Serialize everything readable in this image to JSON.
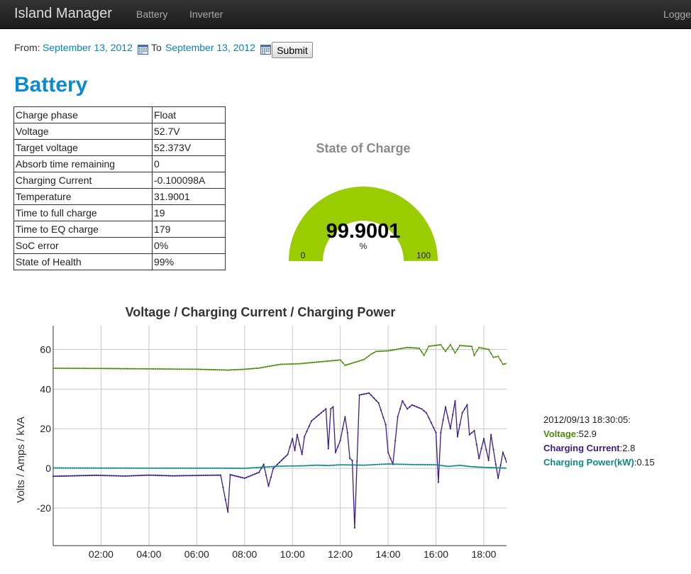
{
  "nav": {
    "brand": "Island Manager",
    "links": [
      "Battery",
      "Inverter"
    ],
    "right": "Logge"
  },
  "date_range": {
    "from_label": "From:",
    "from": "September 13, 2012",
    "to_label": "To",
    "to": "September 13, 2012",
    "submit": "Submit"
  },
  "section_title": "Battery",
  "battery_table": [
    [
      "Charge phase",
      "Float"
    ],
    [
      "Voltage",
      "52.7V"
    ],
    [
      "Target voltage",
      "52.373V"
    ],
    [
      "Absorb time remaining",
      "0"
    ],
    [
      "Charging Current",
      "-0.100098A"
    ],
    [
      "Temperature",
      "31.9001"
    ],
    [
      "Time to full charge",
      "19"
    ],
    [
      "Time to EQ charge",
      "179"
    ],
    [
      "SoC error",
      "0%"
    ],
    [
      "State of Health",
      "99%"
    ]
  ],
  "gauge": {
    "title": "State of Charge",
    "value": "99.9001",
    "unit": "%",
    "min": "0",
    "max": "100",
    "fraction": 0.999,
    "color": "#9acd00"
  },
  "colors": {
    "voltage": "#4c8c0c",
    "current": "#3f1a86",
    "power": "#0e8a86",
    "link": "#0a80c4",
    "title": "#0a8ad2"
  },
  "legend": {
    "timestamp": "2012/09/13 18:30:05:",
    "items": [
      {
        "label": "Voltage",
        "value": ":52.9"
      },
      {
        "label": "Charging Current",
        "value": ":2.8"
      },
      {
        "label": "Charging Power(kW)",
        "value": ":0.15"
      }
    ]
  },
  "chart_data": {
    "type": "line",
    "title": "Voltage / Charging Current / Charging Power",
    "ylabel": "Volts / Amps / kVA",
    "xlabel": "",
    "xlim": [
      0,
      18.95
    ],
    "ylim": [
      -39,
      72
    ],
    "x_ticks": [
      "02:00",
      "04:00",
      "06:00",
      "08:00",
      "10:00",
      "12:00",
      "14:00",
      "16:00",
      "18:00"
    ],
    "y_ticks": [
      "60",
      "40",
      "20",
      "0",
      "-20"
    ],
    "grid": true,
    "series": [
      {
        "name": "Voltage",
        "points": [
          [
            0,
            50.5
          ],
          [
            2,
            50.4
          ],
          [
            4,
            50.2
          ],
          [
            6,
            50
          ],
          [
            7.3,
            49.6
          ],
          [
            8,
            50
          ],
          [
            8.6,
            50.6
          ],
          [
            9.5,
            52.5
          ],
          [
            10.3,
            52.8
          ],
          [
            11.2,
            53.8
          ],
          [
            12,
            54.7
          ],
          [
            12.2,
            52
          ],
          [
            12.8,
            54.2
          ],
          [
            13,
            55
          ],
          [
            13.3,
            57.7
          ],
          [
            13.5,
            59
          ],
          [
            14,
            59.3
          ],
          [
            14.8,
            61
          ],
          [
            15.3,
            60.6
          ],
          [
            15.5,
            57
          ],
          [
            15.7,
            61.6
          ],
          [
            16.2,
            62.4
          ],
          [
            16.4,
            59
          ],
          [
            16.6,
            62.4
          ],
          [
            16.8,
            58.2
          ],
          [
            17,
            62
          ],
          [
            17.5,
            61.5
          ],
          [
            17.6,
            57
          ],
          [
            17.8,
            61
          ],
          [
            18.2,
            60
          ],
          [
            18.4,
            56
          ],
          [
            18.6,
            56.5
          ],
          [
            18.8,
            52.5
          ],
          [
            18.95,
            52.9
          ]
        ]
      },
      {
        "name": "Charging Current",
        "points": [
          [
            0,
            -4
          ],
          [
            1.8,
            -3.5
          ],
          [
            3,
            -3.9
          ],
          [
            4,
            -3.4
          ],
          [
            5,
            -3.8
          ],
          [
            6,
            -3.6
          ],
          [
            7,
            -3.4
          ],
          [
            7.3,
            -22
          ],
          [
            7.4,
            -3.2
          ],
          [
            8,
            -5
          ],
          [
            8.6,
            -2
          ],
          [
            8.8,
            2
          ],
          [
            9,
            -9
          ],
          [
            9.2,
            0
          ],
          [
            9.8,
            7
          ],
          [
            10,
            15
          ],
          [
            10.1,
            9
          ],
          [
            10.2,
            17
          ],
          [
            10.4,
            7
          ],
          [
            10.5,
            16
          ],
          [
            10.8,
            24
          ],
          [
            11,
            26
          ],
          [
            11.2,
            28
          ],
          [
            11.4,
            30
          ],
          [
            11.5,
            10
          ],
          [
            11.6,
            30
          ],
          [
            11.7,
            31
          ],
          [
            11.8,
            8
          ],
          [
            12,
            14
          ],
          [
            12.2,
            26
          ],
          [
            12.3,
            18
          ],
          [
            12.4,
            5
          ],
          [
            12.5,
            4
          ],
          [
            12.6,
            -30
          ],
          [
            12.8,
            37
          ],
          [
            13.2,
            38
          ],
          [
            13.6,
            33
          ],
          [
            13.9,
            22
          ],
          [
            14,
            8
          ],
          [
            14.2,
            2
          ],
          [
            14.4,
            26
          ],
          [
            14.6,
            34
          ],
          [
            14.8,
            30
          ],
          [
            15,
            32
          ],
          [
            15.2,
            31
          ],
          [
            15.4,
            30
          ],
          [
            15.6,
            28
          ],
          [
            15.8,
            23
          ],
          [
            16,
            18
          ],
          [
            16.1,
            -7
          ],
          [
            16.2,
            18
          ],
          [
            16.4,
            31
          ],
          [
            16.6,
            20
          ],
          [
            16.8,
            34
          ],
          [
            16.9,
            16
          ],
          [
            17.1,
            28
          ],
          [
            17.3,
            32
          ],
          [
            17.4,
            17
          ],
          [
            17.6,
            19
          ],
          [
            17.8,
            5
          ],
          [
            18,
            15
          ],
          [
            18.2,
            4
          ],
          [
            18.3,
            17
          ],
          [
            18.5,
            2
          ],
          [
            18.6,
            -5
          ],
          [
            18.8,
            8
          ],
          [
            18.9,
            5
          ],
          [
            18.95,
            2.8
          ]
        ]
      },
      {
        "name": "Charging Power(kW)",
        "points": [
          [
            0,
            0.2
          ],
          [
            4,
            0.1
          ],
          [
            7,
            0.1
          ],
          [
            8,
            0
          ],
          [
            8.5,
            0.4
          ],
          [
            9.5,
            1.1
          ],
          [
            10.5,
            1.3
          ],
          [
            11,
            1.6
          ],
          [
            11.5,
            1.4
          ],
          [
            12,
            1.8
          ],
          [
            13,
            1.6
          ],
          [
            14,
            2.2
          ],
          [
            15,
            1.9
          ],
          [
            16,
            1.8
          ],
          [
            16.5,
            1
          ],
          [
            17,
            1.5
          ],
          [
            17.5,
            0.8
          ],
          [
            18,
            0.5
          ],
          [
            18.5,
            0.3
          ],
          [
            18.95,
            0.15
          ]
        ]
      }
    ]
  }
}
